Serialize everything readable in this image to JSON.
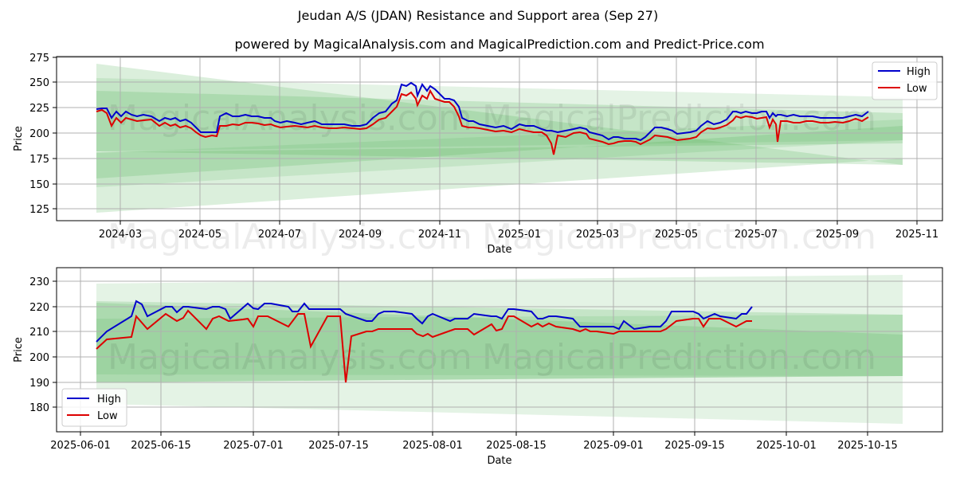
{
  "title": "Jeudan A/S (JDAN) Resistance and Support area (Sep 27)",
  "subtitle": "powered by MagicalAnalysis.com and MagicalPrediction.com and Predict-Price.com",
  "watermarks": [
    "MagicalAnalysis.com",
    "MagicalPrediction.com"
  ],
  "colors": {
    "high": "#0000cc",
    "low": "#dd0000",
    "band": "#4caf50"
  },
  "top_chart": {
    "xlabel": "Date",
    "ylabel": "Price",
    "ytick_labels": [
      "275",
      "250",
      "225",
      "200",
      "175",
      "150",
      "125"
    ],
    "xtick_labels": [
      "2024-03",
      "2024-05",
      "2024-07",
      "2024-09",
      "2024-11",
      "2025-01",
      "2025-03",
      "2025-05",
      "2025-07",
      "2025-09",
      "2025-11"
    ],
    "legend": [
      "High",
      "Low"
    ]
  },
  "bottom_chart": {
    "xlabel": "Date",
    "ylabel": "Price",
    "ytick_labels": [
      "230",
      "220",
      "210",
      "200",
      "190",
      "180"
    ],
    "xtick_labels": [
      "2025-06-01",
      "2025-06-15",
      "2025-07-01",
      "2025-07-15",
      "2025-08-01",
      "2025-08-15",
      "2025-09-01",
      "2025-09-15",
      "2025-10-01",
      "2025-10-15"
    ],
    "legend": [
      "High",
      "Low"
    ]
  }
}
